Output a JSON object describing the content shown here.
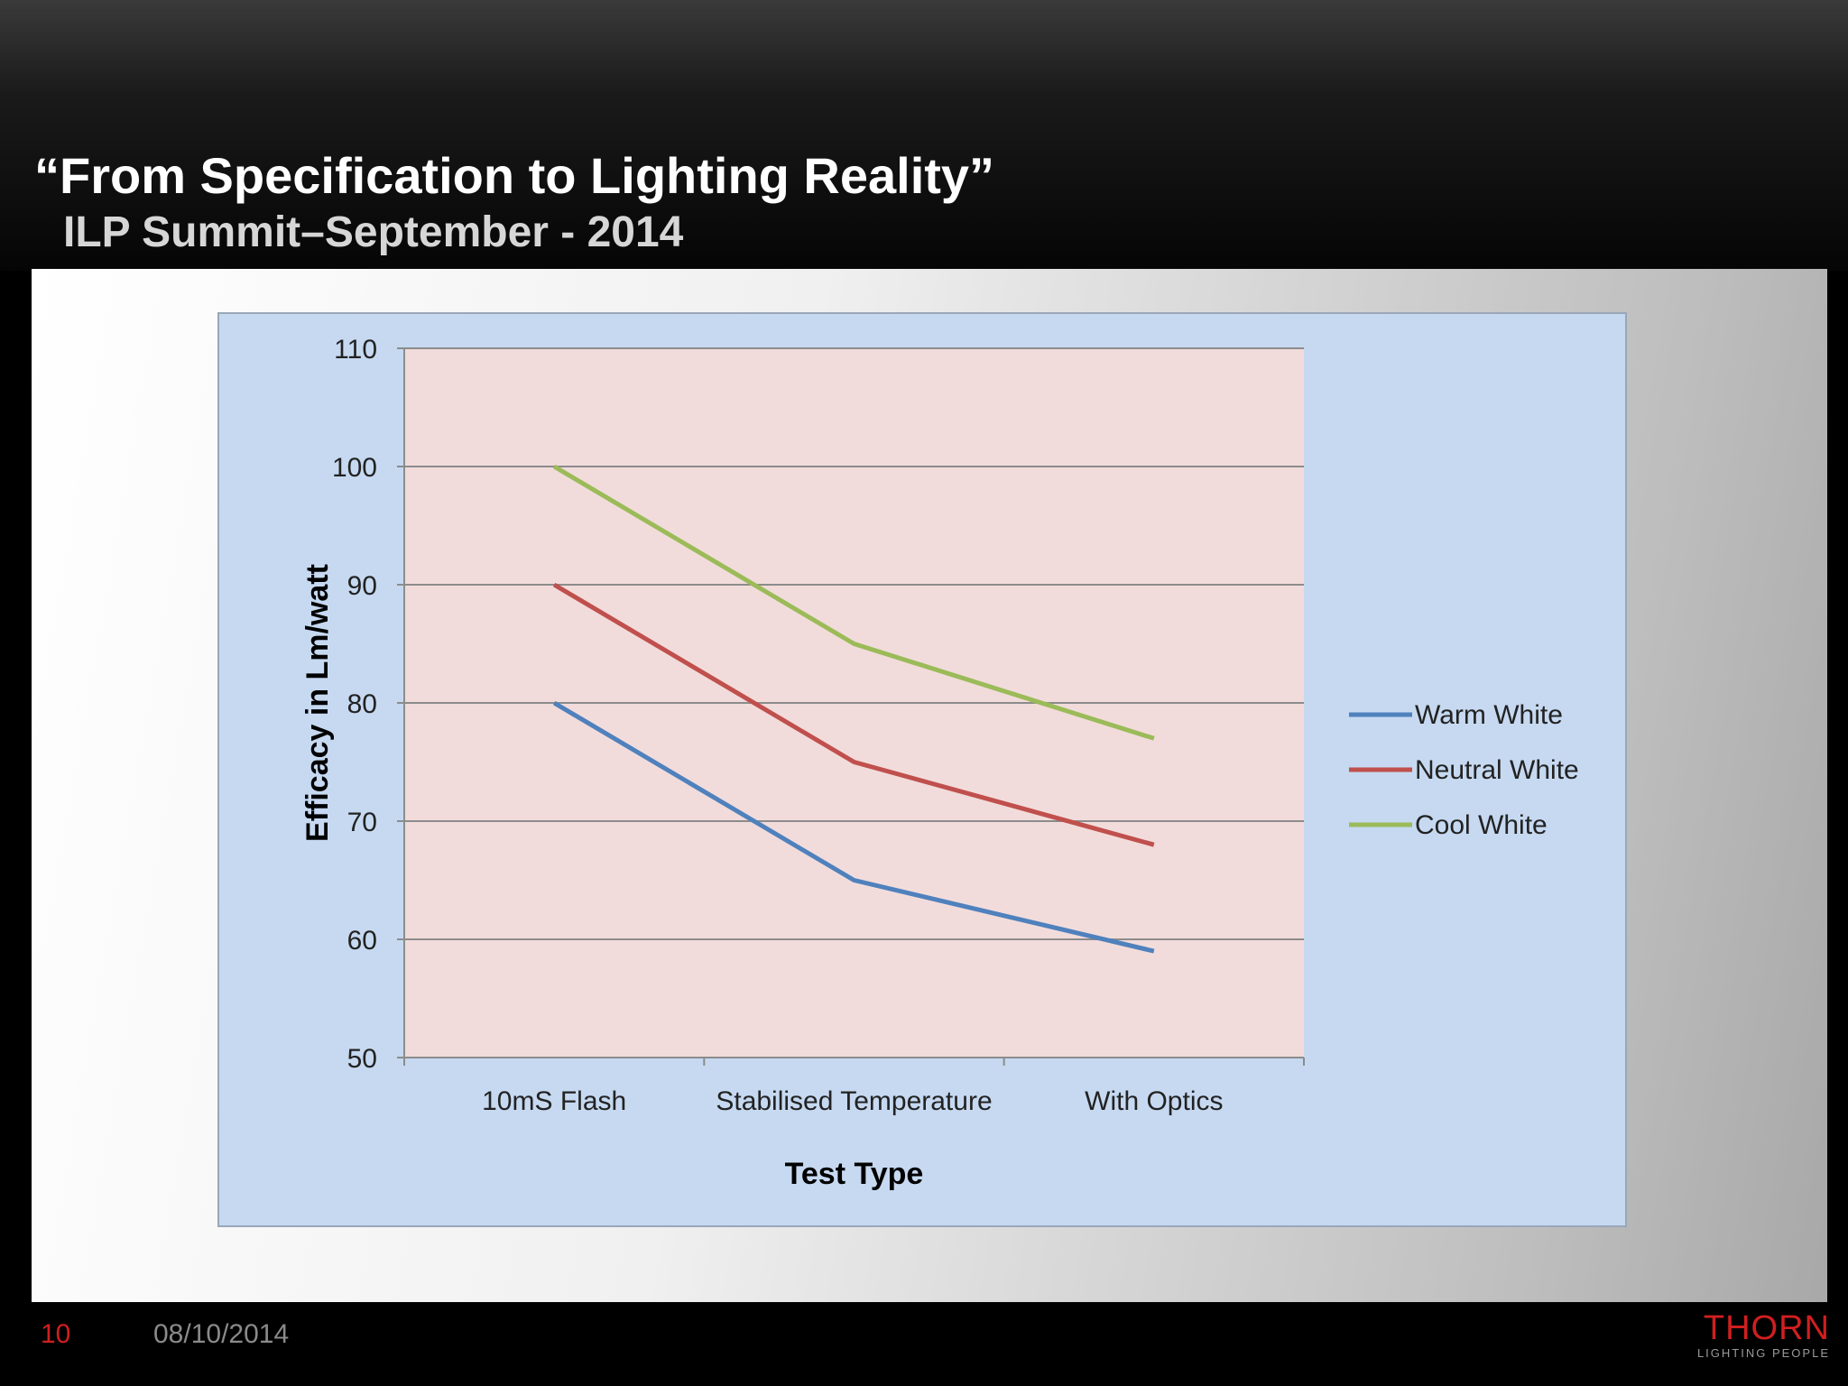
{
  "slide": {
    "title": "“From Specification to Lighting Reality”",
    "subtitle": "ILP Summit–September - 2014",
    "page_number": "10",
    "date": "08/10/2014",
    "logo_word": "THORN",
    "logo_tagline": "LIGHTING PEOPLE"
  },
  "colors": {
    "chart_background": "#c6d9f1",
    "plot_background": "#f2dcdb",
    "warm_white": "#4f81bd",
    "neutral_white": "#c0504d",
    "cool_white": "#9bbb59"
  },
  "chart_data": {
    "type": "line",
    "title": "",
    "xlabel": "Test Type",
    "ylabel": "Efficacy in Lm/watt",
    "categories": [
      "10mS Flash",
      "Stabilised  Temperature",
      "With Optics"
    ],
    "ylim": [
      50,
      110
    ],
    "yticks": [
      50,
      60,
      70,
      80,
      90,
      100,
      110
    ],
    "grid": true,
    "legend_position": "right",
    "series": [
      {
        "name": "Warm White",
        "values": [
          80,
          65,
          59
        ],
        "color": "#4f81bd"
      },
      {
        "name": "Neutral White",
        "values": [
          90,
          75,
          68
        ],
        "color": "#c0504d"
      },
      {
        "name": "Cool White",
        "values": [
          100,
          85,
          77
        ],
        "color": "#9bbb59"
      }
    ]
  }
}
